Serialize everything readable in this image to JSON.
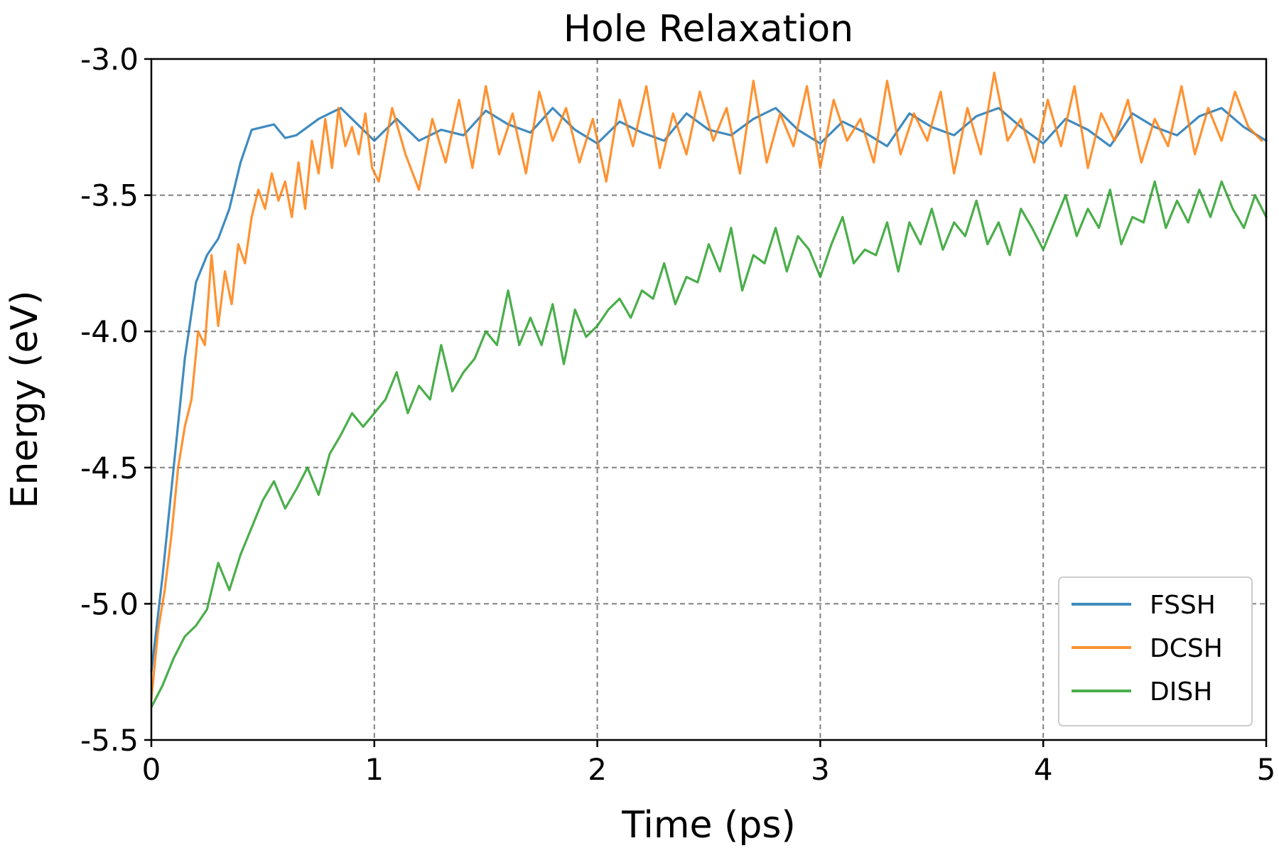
{
  "chart_data": {
    "type": "line",
    "title": "Hole Relaxation",
    "xlabel": "Time (ps)",
    "ylabel": "Energy (eV)",
    "xlim": [
      0,
      5
    ],
    "ylim": [
      -5.5,
      -3.0
    ],
    "xticks": [
      0,
      1,
      2,
      3,
      4,
      5
    ],
    "xtick_labels": [
      "0",
      "1",
      "2",
      "3",
      "4",
      "5"
    ],
    "yticks": [
      -5.5,
      -5.0,
      -4.5,
      -4.0,
      -3.5,
      -3.0
    ],
    "ytick_labels": [
      "-5.5",
      "-5.0",
      "-4.5",
      "-4.0",
      "-3.5",
      "-3.0"
    ],
    "grid": true,
    "legend_position": "lower-right",
    "series": [
      {
        "name": "FSSH",
        "color": "#1f77b4",
        "x": [
          0,
          0.05,
          0.1,
          0.15,
          0.2,
          0.25,
          0.3,
          0.35,
          0.4,
          0.45,
          0.5,
          0.55,
          0.6,
          0.65,
          0.7,
          0.75,
          0.8,
          0.85,
          0.9,
          0.95,
          1.0,
          1.1,
          1.2,
          1.3,
          1.4,
          1.5,
          1.6,
          1.7,
          1.8,
          1.9,
          2.0,
          2.1,
          2.2,
          2.3,
          2.4,
          2.5,
          2.6,
          2.7,
          2.8,
          2.9,
          3.0,
          3.1,
          3.2,
          3.3,
          3.4,
          3.5,
          3.6,
          3.7,
          3.8,
          3.9,
          4.0,
          4.1,
          4.2,
          4.3,
          4.4,
          4.5,
          4.6,
          4.7,
          4.8,
          4.9,
          5.0
        ],
        "y": [
          -5.25,
          -4.9,
          -4.5,
          -4.1,
          -3.82,
          -3.72,
          -3.66,
          -3.55,
          -3.38,
          -3.26,
          -3.25,
          -3.24,
          -3.29,
          -3.28,
          -3.25,
          -3.22,
          -3.2,
          -3.18,
          -3.22,
          -3.26,
          -3.3,
          -3.22,
          -3.3,
          -3.26,
          -3.28,
          -3.19,
          -3.24,
          -3.27,
          -3.18,
          -3.26,
          -3.31,
          -3.23,
          -3.27,
          -3.3,
          -3.2,
          -3.26,
          -3.28,
          -3.22,
          -3.18,
          -3.26,
          -3.31,
          -3.23,
          -3.27,
          -3.32,
          -3.2,
          -3.25,
          -3.28,
          -3.21,
          -3.18,
          -3.25,
          -3.31,
          -3.22,
          -3.26,
          -3.32,
          -3.2,
          -3.25,
          -3.28,
          -3.21,
          -3.18,
          -3.25,
          -3.3
        ]
      },
      {
        "name": "DCSH",
        "color": "#ff7f0e",
        "x": [
          0,
          0.03,
          0.06,
          0.09,
          0.12,
          0.15,
          0.18,
          0.21,
          0.24,
          0.27,
          0.3,
          0.33,
          0.36,
          0.39,
          0.42,
          0.45,
          0.48,
          0.51,
          0.54,
          0.57,
          0.6,
          0.63,
          0.66,
          0.69,
          0.72,
          0.75,
          0.78,
          0.81,
          0.84,
          0.87,
          0.9,
          0.93,
          0.96,
          0.99,
          1.02,
          1.08,
          1.14,
          1.2,
          1.26,
          1.32,
          1.38,
          1.44,
          1.5,
          1.56,
          1.62,
          1.68,
          1.74,
          1.8,
          1.86,
          1.92,
          1.98,
          2.04,
          2.1,
          2.16,
          2.22,
          2.28,
          2.34,
          2.4,
          2.46,
          2.52,
          2.58,
          2.64,
          2.7,
          2.76,
          2.82,
          2.88,
          2.94,
          3.0,
          3.06,
          3.12,
          3.18,
          3.24,
          3.3,
          3.36,
          3.42,
          3.48,
          3.54,
          3.6,
          3.66,
          3.72,
          3.78,
          3.84,
          3.9,
          3.96,
          4.02,
          4.08,
          4.14,
          4.2,
          4.26,
          4.32,
          4.38,
          4.44,
          4.5,
          4.56,
          4.62,
          4.68,
          4.74,
          4.8,
          4.86,
          4.92,
          4.98
        ],
        "y": [
          -5.35,
          -5.1,
          -4.95,
          -4.75,
          -4.5,
          -4.35,
          -4.25,
          -4.0,
          -4.05,
          -3.72,
          -3.98,
          -3.78,
          -3.9,
          -3.68,
          -3.75,
          -3.58,
          -3.48,
          -3.55,
          -3.42,
          -3.52,
          -3.45,
          -3.58,
          -3.38,
          -3.55,
          -3.3,
          -3.42,
          -3.22,
          -3.4,
          -3.18,
          -3.32,
          -3.25,
          -3.35,
          -3.2,
          -3.4,
          -3.45,
          -3.18,
          -3.35,
          -3.48,
          -3.22,
          -3.38,
          -3.15,
          -3.4,
          -3.1,
          -3.35,
          -3.2,
          -3.42,
          -3.12,
          -3.3,
          -3.18,
          -3.38,
          -3.22,
          -3.45,
          -3.15,
          -3.32,
          -3.1,
          -3.4,
          -3.2,
          -3.35,
          -3.12,
          -3.3,
          -3.18,
          -3.42,
          -3.08,
          -3.38,
          -3.2,
          -3.32,
          -3.1,
          -3.4,
          -3.15,
          -3.3,
          -3.22,
          -3.38,
          -3.08,
          -3.35,
          -3.2,
          -3.3,
          -3.12,
          -3.42,
          -3.18,
          -3.35,
          -3.05,
          -3.3,
          -3.22,
          -3.38,
          -3.15,
          -3.32,
          -3.1,
          -3.4,
          -3.2,
          -3.3,
          -3.15,
          -3.38,
          -3.22,
          -3.32,
          -3.1,
          -3.35,
          -3.18,
          -3.3,
          -3.12,
          -3.25,
          -3.3
        ]
      },
      {
        "name": "DISH",
        "color": "#2ca02c",
        "x": [
          0,
          0.05,
          0.1,
          0.15,
          0.2,
          0.25,
          0.3,
          0.35,
          0.4,
          0.45,
          0.5,
          0.55,
          0.6,
          0.65,
          0.7,
          0.75,
          0.8,
          0.85,
          0.9,
          0.95,
          1.0,
          1.05,
          1.1,
          1.15,
          1.2,
          1.25,
          1.3,
          1.35,
          1.4,
          1.45,
          1.5,
          1.55,
          1.6,
          1.65,
          1.7,
          1.75,
          1.8,
          1.85,
          1.9,
          1.95,
          2.0,
          2.05,
          2.1,
          2.15,
          2.2,
          2.25,
          2.3,
          2.35,
          2.4,
          2.45,
          2.5,
          2.55,
          2.6,
          2.65,
          2.7,
          2.75,
          2.8,
          2.85,
          2.9,
          2.95,
          3.0,
          3.05,
          3.1,
          3.15,
          3.2,
          3.25,
          3.3,
          3.35,
          3.4,
          3.45,
          3.5,
          3.55,
          3.6,
          3.65,
          3.7,
          3.75,
          3.8,
          3.85,
          3.9,
          3.95,
          4.0,
          4.05,
          4.1,
          4.15,
          4.2,
          4.25,
          4.3,
          4.35,
          4.4,
          4.45,
          4.5,
          4.55,
          4.6,
          4.65,
          4.7,
          4.75,
          4.8,
          4.85,
          4.9,
          4.95,
          5.0
        ],
        "y": [
          -5.38,
          -5.3,
          -5.2,
          -5.12,
          -5.08,
          -5.02,
          -4.85,
          -4.95,
          -4.82,
          -4.72,
          -4.62,
          -4.55,
          -4.65,
          -4.58,
          -4.5,
          -4.6,
          -4.45,
          -4.38,
          -4.3,
          -4.35,
          -4.3,
          -4.25,
          -4.15,
          -4.3,
          -4.2,
          -4.25,
          -4.05,
          -4.22,
          -4.15,
          -4.1,
          -4.0,
          -4.05,
          -3.85,
          -4.05,
          -3.95,
          -4.05,
          -3.9,
          -4.12,
          -3.92,
          -4.02,
          -3.98,
          -3.92,
          -3.88,
          -3.95,
          -3.85,
          -3.88,
          -3.75,
          -3.9,
          -3.8,
          -3.82,
          -3.68,
          -3.78,
          -3.62,
          -3.85,
          -3.72,
          -3.75,
          -3.62,
          -3.78,
          -3.65,
          -3.7,
          -3.8,
          -3.68,
          -3.58,
          -3.75,
          -3.7,
          -3.72,
          -3.6,
          -3.78,
          -3.6,
          -3.68,
          -3.55,
          -3.7,
          -3.6,
          -3.65,
          -3.52,
          -3.68,
          -3.6,
          -3.72,
          -3.55,
          -3.62,
          -3.7,
          -3.6,
          -3.5,
          -3.65,
          -3.55,
          -3.62,
          -3.48,
          -3.68,
          -3.58,
          -3.6,
          -3.45,
          -3.62,
          -3.52,
          -3.6,
          -3.48,
          -3.58,
          -3.45,
          -3.55,
          -3.62,
          -3.5,
          -3.58
        ]
      }
    ]
  }
}
